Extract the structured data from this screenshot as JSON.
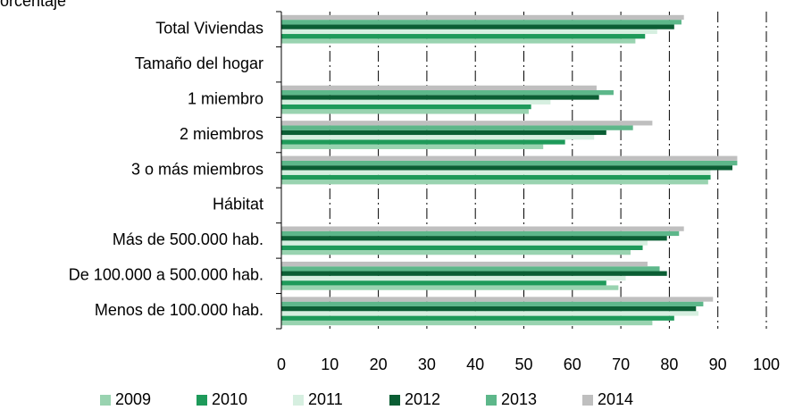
{
  "chart_data": {
    "type": "bar",
    "orientation": "horizontal",
    "ylabel": "Porcentaje",
    "categories": [
      "Total Viviendas",
      "Tamaño del hogar",
      "1 miembro ",
      "2 miembros",
      "3 o más miembros",
      "Hábitat",
      "Más de 500.000 hab.",
      "De 100.000 a 500.000 hab.",
      "Menos de 100.000 hab."
    ],
    "series": [
      {
        "name": "2009",
        "color": "#99d3b0",
        "values": [
          73,
          null,
          51,
          54,
          88,
          null,
          72,
          69.5,
          76.5
        ]
      },
      {
        "name": "2010",
        "color": "#1e9a5a",
        "values": [
          75,
          null,
          51.5,
          58.5,
          88.5,
          null,
          74.5,
          67,
          81
        ]
      },
      {
        "name": "2011",
        "color": "#d6efe0",
        "values": [
          77.5,
          null,
          55.5,
          64.5,
          88.5,
          null,
          75.5,
          71,
          86
        ]
      },
      {
        "name": "2012",
        "color": "#0b5e34",
        "values": [
          81,
          null,
          65.5,
          67,
          93,
          null,
          79.5,
          79.5,
          85.5
        ]
      },
      {
        "name": "2013",
        "color": "#5db78a",
        "values": [
          82.5,
          null,
          68.5,
          72.5,
          94,
          null,
          82,
          78,
          87
        ]
      },
      {
        "name": "2014",
        "color": "#bfbfbf",
        "values": [
          83,
          null,
          65,
          76.5,
          94,
          null,
          83,
          75.5,
          89
        ]
      }
    ],
    "xlim": [
      0,
      100
    ],
    "xticks": [
      0,
      10,
      20,
      30,
      40,
      50,
      60,
      70,
      80,
      90,
      100
    ],
    "grid": true
  }
}
